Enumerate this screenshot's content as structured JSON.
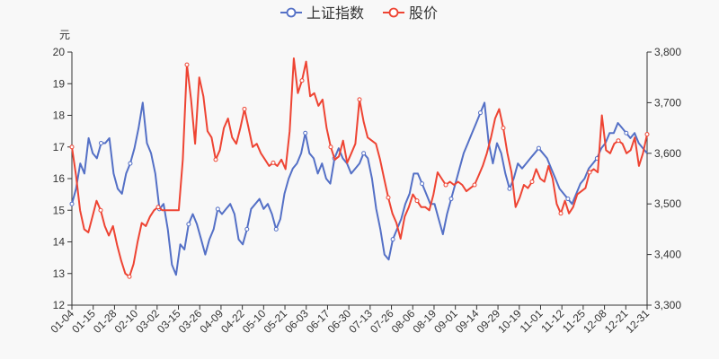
{
  "chart_data": {
    "type": "line",
    "legend_position": "top-center",
    "y_left_unit": "元",
    "y_left_range": [
      12,
      20
    ],
    "y_left_ticks": [
      "12",
      "13",
      "14",
      "15",
      "16",
      "17",
      "18",
      "19",
      "20"
    ],
    "y_right_range": [
      3300,
      3800
    ],
    "y_right_ticks": [
      "3,300",
      "3,400",
      "3,500",
      "3,600",
      "3,700",
      "3,800"
    ],
    "x_ticks": [
      "01-04",
      "01-15",
      "01-28",
      "02-10",
      "03-02",
      "03-15",
      "03-26",
      "04-09",
      "04-22",
      "05-10",
      "05-21",
      "06-03",
      "06-17",
      "06-30",
      "07-13",
      "07-26",
      "08-06",
      "08-19",
      "09-01",
      "09-14",
      "09-29",
      "10-19",
      "11-01",
      "11-12",
      "11-25",
      "12-08",
      "12-21",
      "12-31"
    ],
    "series": [
      {
        "name": "上证指数",
        "color": "#5470c6",
        "axis": "right",
        "values": [
          3500,
          3530,
          3580,
          3560,
          3630,
          3600,
          3590,
          3620,
          3620,
          3630,
          3560,
          3530,
          3520,
          3560,
          3580,
          3610,
          3650,
          3700,
          3620,
          3600,
          3560,
          3490,
          3500,
          3450,
          3380,
          3360,
          3420,
          3410,
          3460,
          3480,
          3460,
          3430,
          3400,
          3430,
          3450,
          3490,
          3480,
          3490,
          3500,
          3480,
          3430,
          3420,
          3450,
          3490,
          3500,
          3510,
          3490,
          3500,
          3480,
          3450,
          3470,
          3520,
          3550,
          3570,
          3580,
          3600,
          3640,
          3600,
          3590,
          3560,
          3580,
          3550,
          3540,
          3590,
          3610,
          3590,
          3580,
          3560,
          3570,
          3580,
          3600,
          3590,
          3550,
          3490,
          3450,
          3400,
          3390,
          3430,
          3450,
          3470,
          3500,
          3520,
          3560,
          3560,
          3540,
          3520,
          3500,
          3500,
          3470,
          3440,
          3480,
          3510,
          3540,
          3570,
          3600,
          3620,
          3640,
          3660,
          3680,
          3700,
          3620,
          3580,
          3620,
          3600,
          3560,
          3530,
          3550,
          3580,
          3570,
          3580,
          3590,
          3600,
          3610,
          3600,
          3590,
          3570,
          3550,
          3530,
          3520,
          3510,
          3500,
          3520,
          3540,
          3550,
          3570,
          3580,
          3590,
          3610,
          3620,
          3640,
          3640,
          3660,
          3650,
          3640,
          3630,
          3640,
          3620,
          3610,
          3600
        ]
      },
      {
        "name": "股价",
        "color": "#ee4433",
        "axis": "left",
        "values": [
          17.0,
          16.1,
          15.0,
          14.4,
          14.3,
          14.8,
          15.3,
          15.0,
          14.5,
          14.2,
          14.5,
          13.9,
          13.4,
          13.0,
          12.9,
          13.3,
          14.0,
          14.6,
          14.5,
          14.8,
          15.0,
          15.1,
          15.0,
          15.0,
          15.0,
          15.0,
          15.0,
          16.6,
          19.6,
          18.5,
          17.1,
          19.2,
          18.6,
          17.5,
          17.3,
          16.6,
          16.9,
          17.6,
          17.9,
          17.3,
          17.1,
          17.6,
          18.2,
          17.6,
          17.0,
          17.1,
          16.8,
          16.6,
          16.4,
          16.5,
          16.4,
          16.6,
          16.3,
          17.5,
          19.8,
          18.7,
          19.1,
          19.7,
          18.6,
          18.7,
          18.3,
          18.5,
          17.6,
          17.0,
          16.6,
          16.7,
          17.2,
          16.5,
          16.8,
          17.1,
          18.5,
          17.8,
          17.3,
          17.2,
          17.1,
          16.6,
          16.0,
          15.4,
          14.9,
          14.6,
          14.1,
          14.8,
          15.1,
          15.5,
          15.3,
          15.1,
          15.1,
          15.0,
          15.5,
          16.2,
          16.0,
          15.8,
          15.9,
          15.8,
          15.9,
          15.8,
          15.6,
          15.7,
          15.8,
          16.1,
          16.4,
          16.8,
          17.3,
          17.9,
          18.2,
          17.6,
          16.8,
          16.2,
          15.1,
          15.4,
          15.8,
          15.7,
          15.9,
          16.3,
          16.0,
          15.9,
          16.4,
          16.0,
          15.2,
          14.9,
          15.3,
          14.9,
          15.1,
          15.5,
          15.6,
          15.7,
          16.2,
          16.3,
          16.2,
          18.0,
          16.9,
          16.8,
          17.1,
          17.2,
          17.1,
          16.8,
          16.9,
          17.3,
          16.4,
          16.8,
          17.4
        ]
      }
    ]
  }
}
